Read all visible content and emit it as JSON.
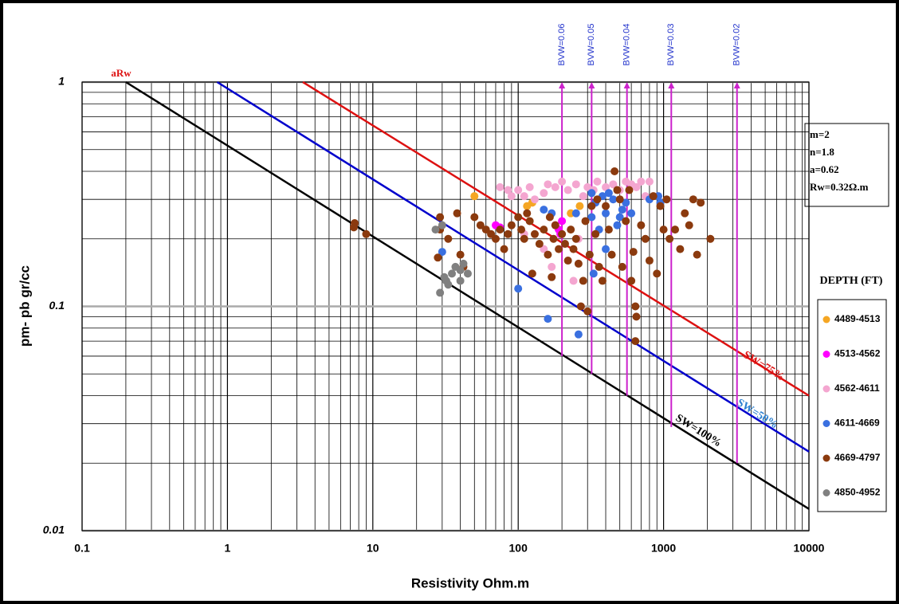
{
  "chart_data": {
    "type": "scatter",
    "x_label": "Resistivity Ohm.m",
    "y_label": "pm- pb gr/cc",
    "xlim": [
      0.1,
      10000
    ],
    "ylim": [
      0.01,
      1
    ],
    "xticks": [
      0.1,
      1,
      10,
      100,
      1000,
      10000
    ],
    "yticks": [
      0.01,
      0.1,
      1
    ],
    "log_x": true,
    "log_y": true,
    "grid": true,
    "minor_grid": true,
    "legend": "right",
    "legend_title": "DEPTH (FT)",
    "annotation": "aRw",
    "params": [
      "m=2",
      "n=1.8",
      "a=0.62",
      "Rw=0.32Ω.m"
    ],
    "lines": [
      {
        "name": "SW=100%",
        "color": "#000000",
        "x": [
          0.2,
          10000
        ],
        "values": [
          1,
          0.0125
        ]
      },
      {
        "name": "SW=50%",
        "color": "#0000cc",
        "x": [
          0.85,
          10000
        ],
        "values": [
          1,
          0.0225
        ]
      },
      {
        "name": "SW=75%",
        "color": "#dd1111",
        "x": [
          3.3,
          10000
        ],
        "values": [
          1,
          0.04
        ]
      }
    ],
    "bvw": [
      {
        "label": "BVW=0.06",
        "x": 200,
        "y": [
          0.06,
          1
        ],
        "color": "#cc22cc"
      },
      {
        "label": "BVW=0.05",
        "x": 320,
        "y": [
          0.05,
          1
        ],
        "color": "#cc22cc"
      },
      {
        "label": "BVW=0.04",
        "x": 560,
        "y": [
          0.04,
          1
        ],
        "color": "#cc22cc"
      },
      {
        "label": "BVW=0.03",
        "x": 1130,
        "y": [
          0.029,
          1
        ],
        "color": "#cc22cc"
      },
      {
        "label": "BVW=0.02",
        "x": 3200,
        "y": [
          0.02,
          1
        ],
        "color": "#cc22cc"
      }
    ],
    "series": [
      {
        "name": "4489-4513",
        "color": "#f5a623",
        "x": [
          50,
          115,
          125,
          265,
          230
        ],
        "values": [
          0.31,
          0.28,
          0.29,
          0.28,
          0.26
        ]
      },
      {
        "name": "4513-4562",
        "color": "#ff00ff",
        "x": [
          70,
          75,
          180,
          190,
          200,
          195
        ],
        "values": [
          0.23,
          0.225,
          0.23,
          0.22,
          0.24,
          0.21
        ]
      },
      {
        "name": "4562-4611",
        "color": "#f4a6d0",
        "x": [
          75,
          85,
          90,
          100,
          110,
          120,
          130,
          150,
          160,
          180,
          200,
          220,
          250,
          280,
          300,
          330,
          350,
          400,
          450,
          500,
          550,
          600,
          650,
          700,
          750,
          800,
          170,
          240,
          150,
          110,
          260
        ],
        "values": [
          0.34,
          0.33,
          0.31,
          0.33,
          0.31,
          0.34,
          0.3,
          0.32,
          0.35,
          0.34,
          0.36,
          0.33,
          0.35,
          0.31,
          0.34,
          0.33,
          0.36,
          0.34,
          0.35,
          0.33,
          0.36,
          0.35,
          0.34,
          0.36,
          0.31,
          0.36,
          0.15,
          0.13,
          0.18,
          0.21,
          0.2
        ]
      },
      {
        "name": "4611-4669",
        "color": "#3a70e0",
        "x": [
          30,
          100,
          160,
          260,
          150,
          170,
          250,
          320,
          340,
          360,
          380,
          400,
          420,
          450,
          480,
          500,
          520,
          550,
          600,
          400,
          330,
          920,
          950,
          800,
          320
        ],
        "values": [
          0.175,
          0.12,
          0.088,
          0.075,
          0.27,
          0.26,
          0.26,
          0.32,
          0.29,
          0.22,
          0.31,
          0.26,
          0.32,
          0.3,
          0.23,
          0.25,
          0.27,
          0.29,
          0.26,
          0.18,
          0.14,
          0.31,
          0.29,
          0.3,
          0.25
        ]
      },
      {
        "name": "4669-4797",
        "color": "#8b3a0e",
        "x": [
          7.5,
          7.4,
          9,
          28,
          29,
          29,
          33,
          38,
          40,
          42,
          50,
          55,
          60,
          65,
          70,
          75,
          80,
          85,
          90,
          100,
          105,
          110,
          115,
          120,
          125,
          130,
          140,
          150,
          160,
          165,
          170,
          175,
          180,
          190,
          200,
          210,
          220,
          230,
          240,
          250,
          260,
          270,
          280,
          290,
          300,
          310,
          320,
          340,
          350,
          360,
          380,
          400,
          420,
          440,
          460,
          480,
          500,
          520,
          550,
          580,
          600,
          620,
          640,
          650,
          640,
          700,
          750,
          800,
          850,
          900,
          950,
          1000,
          1050,
          1100,
          1200,
          1300,
          1400,
          1500,
          1600,
          1700,
          1800,
          2100
        ],
        "values": [
          0.235,
          0.225,
          0.21,
          0.165,
          0.25,
          0.22,
          0.2,
          0.26,
          0.17,
          0.15,
          0.25,
          0.23,
          0.22,
          0.21,
          0.2,
          0.22,
          0.18,
          0.21,
          0.23,
          0.25,
          0.22,
          0.2,
          0.26,
          0.24,
          0.14,
          0.21,
          0.19,
          0.22,
          0.17,
          0.25,
          0.135,
          0.2,
          0.23,
          0.18,
          0.21,
          0.19,
          0.16,
          0.22,
          0.18,
          0.2,
          0.155,
          0.1,
          0.13,
          0.24,
          0.095,
          0.17,
          0.28,
          0.21,
          0.3,
          0.15,
          0.13,
          0.28,
          0.22,
          0.17,
          0.4,
          0.33,
          0.3,
          0.15,
          0.24,
          0.33,
          0.13,
          0.175,
          0.1,
          0.09,
          0.07,
          0.23,
          0.2,
          0.16,
          0.31,
          0.14,
          0.28,
          0.22,
          0.3,
          0.2,
          0.22,
          0.18,
          0.26,
          0.23,
          0.3,
          0.17,
          0.29,
          0.2
        ]
      },
      {
        "name": "4850-4952",
        "color": "#808080",
        "x": [
          27,
          29,
          31,
          32,
          33,
          35,
          37,
          40,
          42,
          45,
          40,
          30
        ],
        "values": [
          0.22,
          0.115,
          0.135,
          0.13,
          0.125,
          0.14,
          0.15,
          0.145,
          0.155,
          0.14,
          0.13,
          0.23
        ]
      }
    ]
  }
}
